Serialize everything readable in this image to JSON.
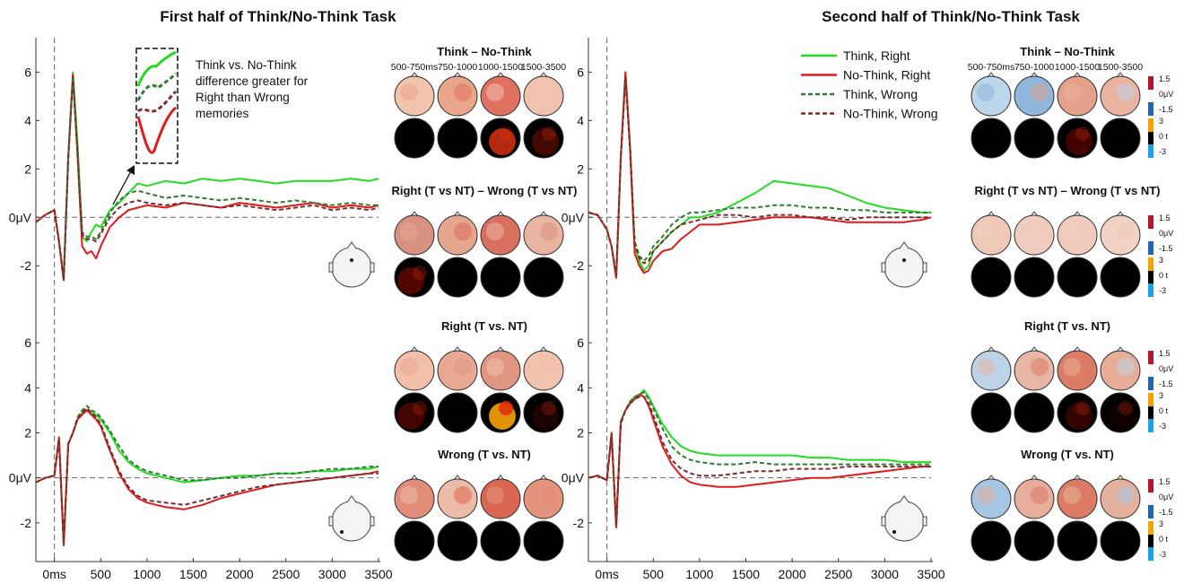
{
  "titles": {
    "left": "First half of Think/No-Think Task",
    "right": "Second half of Think/No-Think Task"
  },
  "axis": {
    "y_ticks": [
      "6",
      "4",
      "2",
      "0μV",
      "-2"
    ],
    "x_ticks": [
      "0ms",
      "500",
      "1000",
      "1500",
      "2000",
      "2500",
      "3000",
      "3500"
    ]
  },
  "annotation": "Think vs. No-Think difference greater for Right than Wrong memories",
  "annotation_lines": [
    "Think vs. No-Think",
    "difference greater for",
    "Right than Wrong",
    "memories"
  ],
  "legend": [
    {
      "label": "Think, Right",
      "color": "#22dd22",
      "dash": "solid"
    },
    {
      "label": "No-Think, Right",
      "color": "#e01b1b",
      "dash": "solid"
    },
    {
      "label": "Think, Wrong",
      "color": "#2e7d32",
      "dash": "dashed"
    },
    {
      "label": "No-Think, Wrong",
      "color": "#7b2d2d",
      "dash": "dashed"
    }
  ],
  "topo": {
    "time_windows": [
      "500-750ms",
      "750-1000",
      "1000-1500",
      "1500-3500"
    ],
    "section_titles": [
      "Think – No-Think",
      "Right (T vs NT) – Wrong (T vs NT)",
      "Right (T vs. NT)",
      "Wrong (T vs. NT)"
    ],
    "colorbar_amp_labels": [
      "1.5",
      "0μV",
      "-1.5"
    ],
    "colorbar_t_labels": [
      "3",
      "0 t",
      "-3"
    ]
  },
  "chart_data": [
    {
      "type": "line",
      "title": "First half of Think/No-Think Task",
      "panel": "top-left",
      "xlabel": "",
      "ylabel": "",
      "xlim": [
        -200,
        3500
      ],
      "ylim": [
        -3.4,
        7.2
      ],
      "x": [
        -200,
        -100,
        0,
        50,
        100,
        150,
        200,
        250,
        300,
        350,
        400,
        450,
        500,
        600,
        700,
        800,
        900,
        1000,
        1200,
        1400,
        1600,
        1800,
        2000,
        2200,
        2400,
        2600,
        2800,
        3000,
        3200,
        3400,
        3500
      ],
      "series": [
        {
          "name": "Think, Right",
          "values": [
            -0.2,
            0.1,
            0.3,
            -1,
            -2.6,
            2.5,
            6,
            3,
            -0.8,
            -1,
            -0.6,
            -0.3,
            -0.4,
            0.3,
            0.6,
            1,
            1.4,
            1.3,
            1.5,
            1.4,
            1.6,
            1.5,
            1.6,
            1.5,
            1.4,
            1.5,
            1.5,
            1.5,
            1.6,
            1.5,
            1.6
          ]
        },
        {
          "name": "No-Think, Right",
          "values": [
            -0.2,
            0.1,
            0.3,
            -1,
            -2.6,
            2.5,
            5.9,
            2.5,
            -1.2,
            -1.5,
            -1.4,
            -1.7,
            -1.2,
            -0.4,
            0,
            0.3,
            0.4,
            0.5,
            0.4,
            0.6,
            0.5,
            0.4,
            0.6,
            0.5,
            0.4,
            0.5,
            0.6,
            0.4,
            0.5,
            0.4,
            0.5
          ]
        },
        {
          "name": "Think, Wrong",
          "values": [
            -0.2,
            0.1,
            0.3,
            -1,
            -2.5,
            2.5,
            5.8,
            2.8,
            -0.6,
            -0.8,
            -0.8,
            -0.9,
            -0.6,
            0.2,
            0.7,
            1,
            1.1,
            1,
            0.8,
            0.9,
            0.8,
            0.7,
            0.8,
            0.7,
            0.6,
            0.7,
            0.6,
            0.5,
            0.6,
            0.5,
            0.5
          ]
        },
        {
          "name": "No-Think, Wrong",
          "values": [
            -0.2,
            0.1,
            0.3,
            -1,
            -2.6,
            2.4,
            5.8,
            2.6,
            -0.7,
            -0.9,
            -0.9,
            -1,
            -0.7,
            0,
            0.4,
            0.6,
            0.7,
            0.6,
            0.5,
            0.6,
            0.5,
            0.4,
            0.5,
            0.4,
            0.3,
            0.4,
            0.5,
            0.3,
            0.4,
            0.3,
            0.4
          ]
        }
      ]
    },
    {
      "type": "line",
      "panel": "bottom-left",
      "xlabel": "",
      "ylabel": "",
      "xlim": [
        -200,
        3500
      ],
      "ylim": [
        -3.4,
        7.2
      ],
      "x": [
        -200,
        -100,
        0,
        50,
        100,
        150,
        200,
        250,
        300,
        350,
        400,
        450,
        500,
        600,
        700,
        800,
        900,
        1000,
        1200,
        1400,
        1600,
        1800,
        2000,
        2200,
        2400,
        2600,
        2800,
        3000,
        3200,
        3400,
        3500
      ],
      "series": [
        {
          "name": "Think, Right",
          "values": [
            -0.2,
            0,
            0.1,
            1.8,
            -3,
            1.5,
            2,
            2.6,
            2.9,
            3,
            2.9,
            2.8,
            2.6,
            2,
            1.2,
            0.7,
            0.4,
            0.2,
            0,
            -0.2,
            -0.1,
            0,
            0.1,
            0.1,
            0.2,
            0.2,
            0.3,
            0.3,
            0.4,
            0.4,
            0.5
          ]
        },
        {
          "name": "No-Think, Right",
          "values": [
            -0.2,
            0,
            0.1,
            1.8,
            -3,
            1.5,
            2,
            2.6,
            2.8,
            3,
            2.8,
            2.6,
            2.3,
            1.2,
            0.2,
            -0.5,
            -0.9,
            -1.1,
            -1.3,
            -1.4,
            -1.2,
            -0.9,
            -0.7,
            -0.5,
            -0.3,
            -0.2,
            -0.1,
            0,
            0.1,
            0.2,
            0.3
          ]
        },
        {
          "name": "Think, Wrong",
          "values": [
            -0.2,
            0,
            0.1,
            1.7,
            -2.9,
            1.5,
            2,
            2.7,
            3,
            3.2,
            3,
            2.9,
            2.7,
            2.1,
            1.4,
            0.8,
            0.5,
            0.3,
            0.1,
            -0.1,
            -0.1,
            0,
            0,
            0.1,
            0.2,
            0.2,
            0.3,
            0.4,
            0.4,
            0.5,
            0.5
          ]
        },
        {
          "name": "No-Think, Wrong",
          "values": [
            -0.2,
            0,
            0.1,
            1.7,
            -2.9,
            1.5,
            2,
            2.6,
            2.9,
            3.1,
            2.9,
            2.7,
            2.4,
            1.3,
            0.3,
            -0.4,
            -0.8,
            -1,
            -1.1,
            -1.2,
            -1,
            -0.8,
            -0.6,
            -0.4,
            -0.3,
            -0.2,
            -0.1,
            0,
            0.1,
            0.2,
            0.2
          ]
        }
      ]
    },
    {
      "type": "line",
      "title": "Second half of Think/No-Think Task",
      "panel": "top-right",
      "xlabel": "",
      "ylabel": "",
      "xlim": [
        -200,
        3500
      ],
      "ylim": [
        -3.4,
        7.2
      ],
      "x": [
        -200,
        -100,
        0,
        50,
        100,
        150,
        200,
        250,
        300,
        350,
        400,
        450,
        500,
        600,
        700,
        800,
        900,
        1000,
        1200,
        1400,
        1600,
        1800,
        2000,
        2200,
        2400,
        2600,
        2800,
        3000,
        3200,
        3400,
        3500
      ],
      "series": [
        {
          "name": "Think, Right",
          "values": [
            0.2,
            0.1,
            -0.5,
            -1.2,
            -2.5,
            2.5,
            6,
            3,
            -1.2,
            -1.8,
            -2.2,
            -2,
            -1.4,
            -1,
            -0.6,
            -0.3,
            0,
            0,
            0.2,
            0.6,
            1,
            1.5,
            1.4,
            1.3,
            1.2,
            0.9,
            0.6,
            0.4,
            0.3,
            0.2,
            0.2
          ]
        },
        {
          "name": "No-Think, Right",
          "values": [
            0.2,
            0.1,
            -0.5,
            -1.2,
            -2.5,
            2.5,
            6,
            2.8,
            -1.5,
            -2,
            -2.3,
            -2.2,
            -1.8,
            -1.4,
            -1.3,
            -0.9,
            -0.6,
            -0.3,
            -0.3,
            -0.2,
            -0.1,
            0,
            0,
            0,
            -0.1,
            -0.2,
            -0.2,
            -0.2,
            -0.2,
            -0.1,
            0
          ]
        },
        {
          "name": "Think, Wrong",
          "values": [
            0.2,
            0.1,
            -0.5,
            -1.2,
            -2.4,
            2.5,
            5.8,
            2.8,
            -1,
            -1.6,
            -1.8,
            -1.6,
            -1.2,
            -0.8,
            -0.3,
            0,
            0.2,
            0.2,
            0.3,
            0.4,
            0.4,
            0.5,
            0.5,
            0.4,
            0.4,
            0.3,
            0.3,
            0.2,
            0.2,
            0.2,
            0.2
          ]
        },
        {
          "name": "No-Think, Wrong",
          "values": [
            0.2,
            0.1,
            -0.5,
            -1.2,
            -2.4,
            2.4,
            5.8,
            2.7,
            -1.1,
            -1.7,
            -1.9,
            -1.8,
            -1.4,
            -1,
            -0.6,
            -0.3,
            -0.2,
            -0.1,
            0.1,
            0.1,
            0,
            0.1,
            0.1,
            0,
            0,
            -0.1,
            0,
            0,
            0,
            0,
            0
          ]
        }
      ]
    },
    {
      "type": "line",
      "panel": "bottom-right",
      "xlabel": "",
      "ylabel": "",
      "xlim": [
        -200,
        3500
      ],
      "ylim": [
        -3.4,
        7.2
      ],
      "x": [
        -200,
        -100,
        0,
        50,
        100,
        150,
        200,
        250,
        300,
        350,
        400,
        450,
        500,
        600,
        700,
        800,
        900,
        1000,
        1200,
        1400,
        1600,
        1800,
        2000,
        2200,
        2400,
        2600,
        2800,
        3000,
        3200,
        3400,
        3500
      ],
      "series": [
        {
          "name": "Think, Right",
          "values": [
            0,
            0.1,
            -0.1,
            2,
            -2.2,
            2.5,
            3,
            3.4,
            3.6,
            3.7,
            3.9,
            3.6,
            3.2,
            2.4,
            1.8,
            1.4,
            1.2,
            1.1,
            1,
            1,
            1,
            1,
            1,
            0.9,
            0.9,
            0.8,
            0.8,
            0.8,
            0.7,
            0.7,
            0.7
          ]
        },
        {
          "name": "No-Think, Right",
          "values": [
            0,
            0.1,
            -0.1,
            2,
            -2.2,
            2.5,
            3,
            3.3,
            3.5,
            3.7,
            3.6,
            3.2,
            2.6,
            1.4,
            0.6,
            0.1,
            -0.2,
            -0.3,
            -0.4,
            -0.4,
            -0.3,
            -0.2,
            -0.1,
            0,
            0,
            0.1,
            0.2,
            0.3,
            0.4,
            0.5,
            0.5
          ]
        },
        {
          "name": "Think, Wrong",
          "values": [
            0,
            0.1,
            -0.1,
            1.9,
            -2.1,
            2.5,
            3,
            3.4,
            3.6,
            3.7,
            3.8,
            3.5,
            3.1,
            2.2,
            1.4,
            1,
            0.8,
            0.7,
            0.6,
            0.6,
            0.7,
            0.6,
            0.6,
            0.6,
            0.6,
            0.6,
            0.6,
            0.6,
            0.6,
            0.6,
            0.6
          ]
        },
        {
          "name": "No-Think, Wrong",
          "values": [
            0,
            0.1,
            -0.1,
            1.9,
            -2.1,
            2.4,
            3,
            3.3,
            3.5,
            3.6,
            3.6,
            3.3,
            2.8,
            1.6,
            0.8,
            0.4,
            0.2,
            0.1,
            0.1,
            0.2,
            0.3,
            0.3,
            0.4,
            0.4,
            0.4,
            0.5,
            0.5,
            0.5,
            0.5,
            0.5,
            0.5
          ]
        }
      ]
    }
  ]
}
